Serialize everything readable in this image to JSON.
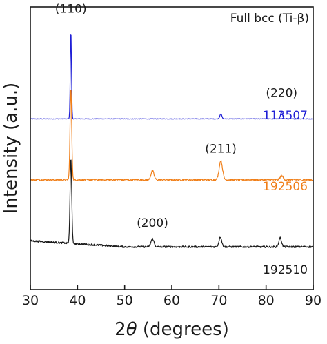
{
  "chart_data": {
    "type": "line",
    "title": "",
    "xlabel": "2θ (degrees)",
    "ylabel": "Intensity (a.u.)",
    "xlim": [
      30,
      90
    ],
    "x_ticks": [
      "30",
      "40",
      "50",
      "60",
      "70",
      "80",
      "90"
    ],
    "y_ticks": [],
    "grid": false,
    "annotation": "Full bcc (Ti-β)",
    "series": [
      {
        "name": "113507",
        "color": "#1f1fd6",
        "baseline": 0.64,
        "peaks": [
          {
            "x": 38.6,
            "height": 0.44,
            "width": 0.18
          },
          {
            "x": 70.4,
            "height": 0.025,
            "width": 0.3
          },
          {
            "x": 83.3,
            "height": 0.035,
            "width": 0.3
          }
        ]
      },
      {
        "name": "192506",
        "color": "#f07f19",
        "baseline": 0.335,
        "peaks": [
          {
            "x": 38.6,
            "height": 0.46,
            "width": 0.25
          },
          {
            "x": 55.9,
            "height": 0.045,
            "width": 0.45
          },
          {
            "x": 70.4,
            "height": 0.095,
            "width": 0.5
          },
          {
            "x": 83.3,
            "height": 0.02,
            "width": 0.45
          }
        ]
      },
      {
        "name": "192510",
        "color": "#1a1a1a",
        "baseline": 0.0,
        "peaks": [
          {
            "x": 38.6,
            "height": 0.43,
            "width": 0.25
          },
          {
            "x": 55.9,
            "height": 0.04,
            "width": 0.45
          },
          {
            "x": 70.3,
            "height": 0.05,
            "width": 0.4
          },
          {
            "x": 83.0,
            "height": 0.045,
            "width": 0.4
          }
        ]
      }
    ],
    "peak_labels": [
      {
        "text": "(110)",
        "x": 38.6,
        "y": 1.17
      },
      {
        "text": "(220)",
        "x": 83.3,
        "y": 0.75
      },
      {
        "text": "(211)",
        "x": 70.4,
        "y": 0.47
      },
      {
        "text": "(200)",
        "x": 55.9,
        "y": 0.1
      }
    ]
  }
}
